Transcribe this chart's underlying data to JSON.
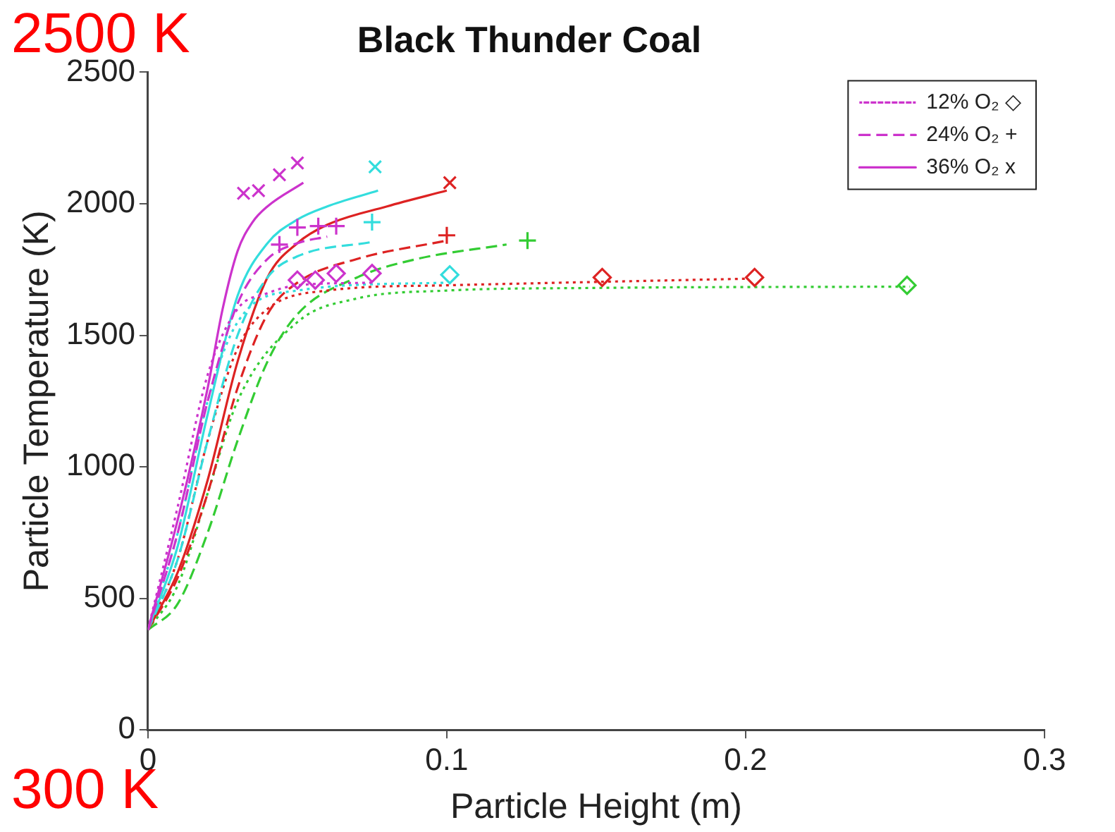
{
  "chart_data": {
    "type": "line",
    "title": "Black Thunder Coal",
    "xlabel": "Particle Height (m)",
    "ylabel": "Particle Temperature (K)",
    "xlim": [
      0,
      0.3
    ],
    "xticks": [
      0,
      0.1,
      0.2,
      0.3
    ],
    "ylim": [
      0,
      2500
    ],
    "yticks": [
      0,
      500,
      1000,
      1500,
      2000,
      2500
    ],
    "grid": false,
    "legend": "top right",
    "annotations": [
      "2500 K",
      "300 K"
    ],
    "series": [
      {
        "name": "12% O₂ ◇",
        "type": "line",
        "line_style": "dotted",
        "color": "#cc33cc",
        "x": [
          0,
          0.01,
          0.02,
          0.03,
          0.04,
          0.05,
          0.075
        ],
        "values": [
          380,
          850,
          1350,
          1600,
          1660,
          1690,
          1700
        ]
      },
      {
        "name": "24% O₂ +",
        "type": "line",
        "line_style": "dashed",
        "color": "#cc33cc",
        "x": [
          0,
          0.01,
          0.02,
          0.03,
          0.04,
          0.05,
          0.06
        ],
        "values": [
          380,
          750,
          1250,
          1620,
          1790,
          1850,
          1875
        ]
      },
      {
        "name": "36% O₂ x",
        "type": "line",
        "line_style": "solid",
        "color": "#cc33cc",
        "x": [
          0,
          0.01,
          0.02,
          0.025,
          0.03,
          0.035,
          0.04,
          0.052
        ],
        "values": [
          380,
          800,
          1300,
          1600,
          1820,
          1930,
          1990,
          2080
        ]
      },
      {
        "type": "line",
        "line_style": "dotted",
        "color": "#33dddd",
        "x": [
          0,
          0.01,
          0.02,
          0.03,
          0.05,
          0.1
        ],
        "values": [
          380,
          750,
          1250,
          1550,
          1670,
          1700
        ]
      },
      {
        "type": "line",
        "line_style": "dashed",
        "color": "#33dddd",
        "x": [
          0,
          0.01,
          0.02,
          0.03,
          0.04,
          0.05,
          0.075
        ],
        "values": [
          380,
          650,
          1100,
          1500,
          1720,
          1800,
          1855
        ]
      },
      {
        "type": "line",
        "line_style": "solid",
        "color": "#33dddd",
        "x": [
          0,
          0.01,
          0.02,
          0.03,
          0.04,
          0.05,
          0.06,
          0.077
        ],
        "values": [
          380,
          700,
          1200,
          1650,
          1850,
          1940,
          1990,
          2050
        ]
      },
      {
        "type": "line",
        "line_style": "dotted",
        "color": "#dd2222",
        "x": [
          0,
          0.01,
          0.02,
          0.03,
          0.04,
          0.06,
          0.1,
          0.2
        ],
        "values": [
          380,
          650,
          1100,
          1450,
          1600,
          1670,
          1690,
          1715
        ]
      },
      {
        "type": "line",
        "line_style": "dashed",
        "color": "#dd2222",
        "x": [
          0,
          0.01,
          0.02,
          0.03,
          0.04,
          0.05,
          0.07,
          0.1
        ],
        "values": [
          380,
          580,
          900,
          1300,
          1580,
          1700,
          1790,
          1860
        ]
      },
      {
        "type": "line",
        "line_style": "solid",
        "color": "#dd2222",
        "x": [
          0,
          0.01,
          0.02,
          0.03,
          0.04,
          0.05,
          0.06,
          0.08,
          0.1
        ],
        "values": [
          380,
          600,
          950,
          1400,
          1720,
          1850,
          1920,
          1990,
          2050
        ]
      },
      {
        "type": "line",
        "line_style": "dotted",
        "color": "#33cc33",
        "x": [
          0,
          0.01,
          0.02,
          0.03,
          0.05,
          0.07,
          0.1,
          0.15,
          0.255
        ],
        "values": [
          380,
          550,
          900,
          1250,
          1550,
          1640,
          1670,
          1680,
          1685
        ]
      },
      {
        "type": "line",
        "line_style": "dashed",
        "color": "#33cc33",
        "x": [
          0,
          0.01,
          0.02,
          0.03,
          0.04,
          0.05,
          0.07,
          0.09,
          0.12
        ],
        "values": [
          380,
          480,
          750,
          1100,
          1400,
          1580,
          1720,
          1790,
          1845
        ]
      },
      {
        "type": "scatter",
        "marker": "diamond",
        "color": "#cc33cc",
        "x": [
          0.05,
          0.056,
          0.063,
          0.075
        ],
        "values": [
          1710,
          1710,
          1735,
          1735
        ]
      },
      {
        "type": "scatter",
        "marker": "diamond",
        "color": "#33dddd",
        "x": [
          0.101
        ],
        "values": [
          1730
        ]
      },
      {
        "type": "scatter",
        "marker": "diamond",
        "color": "#dd2222",
        "x": [
          0.152,
          0.203
        ],
        "values": [
          1720,
          1720
        ]
      },
      {
        "type": "scatter",
        "marker": "diamond",
        "color": "#33cc33",
        "x": [
          0.254
        ],
        "values": [
          1690
        ]
      },
      {
        "type": "scatter",
        "marker": "cross",
        "color": "#cc33cc",
        "x": [
          0.044,
          0.05,
          0.057,
          0.063
        ],
        "values": [
          1845,
          1910,
          1915,
          1915
        ]
      },
      {
        "type": "scatter",
        "marker": "cross",
        "color": "#33dddd",
        "x": [
          0.075
        ],
        "values": [
          1930
        ]
      },
      {
        "type": "scatter",
        "marker": "cross",
        "color": "#dd2222",
        "x": [
          0.1
        ],
        "values": [
          1880
        ]
      },
      {
        "type": "scatter",
        "marker": "cross",
        "color": "#33cc33",
        "x": [
          0.127
        ],
        "values": [
          1860
        ]
      },
      {
        "type": "scatter",
        "marker": "x",
        "color": "#cc33cc",
        "x": [
          0.032,
          0.037,
          0.044,
          0.05
        ],
        "values": [
          2040,
          2050,
          2110,
          2155
        ]
      },
      {
        "type": "scatter",
        "marker": "x",
        "color": "#33dddd",
        "x": [
          0.076
        ],
        "values": [
          2140
        ]
      },
      {
        "type": "scatter",
        "marker": "x",
        "color": "#dd2222",
        "x": [
          0.101
        ],
        "values": [
          2080
        ]
      }
    ]
  }
}
